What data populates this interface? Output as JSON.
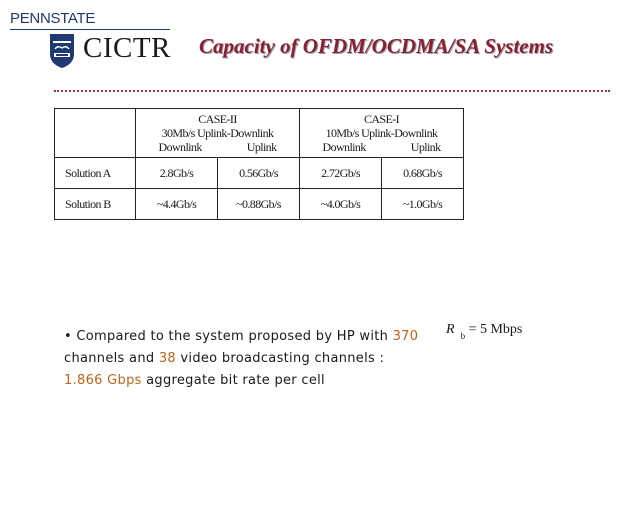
{
  "header": {
    "university": "PENNSTATE",
    "center": "CICTR",
    "title": "Capacity of OFDM/OCDMA/SA Systems",
    "colors": {
      "title": "#8b1f2b",
      "rule": "#a8383f",
      "highlight": "#c0641c"
    }
  },
  "table": {
    "groups": [
      {
        "case": "CASE-II",
        "rate": "30Mb/s Uplink-Downlink",
        "downlink": "Downlink",
        "uplink": "Uplink"
      },
      {
        "case": "CASE-I",
        "rate": "10Mb/s Uplink-Downlink",
        "downlink": "Downlink",
        "uplink": "Uplink"
      }
    ],
    "rows": [
      {
        "label": "Solution A",
        "values": [
          "2.8Gb/s",
          "0.56Gb/s",
          "2.72Gb/s",
          "0.68Gb/s"
        ]
      },
      {
        "label": "Solution B",
        "values": [
          "~4.4Gb/s",
          "~0.88Gb/s",
          "~4.0Gb/s",
          "~1.0Gb/s"
        ]
      }
    ]
  },
  "bullet": {
    "marker": "•",
    "t1": "Compared to the system proposed by HP with ",
    "n1": "370",
    "t2": "channels and ",
    "n2": "38",
    "t3": " video broadcasting channels :",
    "rate": "1.866 Gbps",
    "t4": " aggregate bit rate per cell"
  },
  "formula": {
    "symbol": "R",
    "subscript": "b",
    "rest": "= 5 Mbps"
  }
}
